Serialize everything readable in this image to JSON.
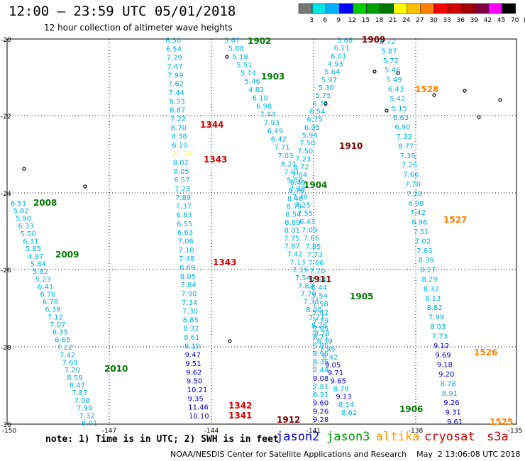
{
  "title": "12:00 – 23:59 UTC 05/01/2018",
  "subtitle": "12 hour collection of altimeter wave heights",
  "colorbar": {
    "labels": [
      "3",
      "6",
      "9",
      "12",
      "15",
      "18",
      "21",
      "24",
      "27",
      "30",
      "33",
      "36",
      "39",
      "42",
      "45",
      "70",
      "(ft)"
    ],
    "colors": [
      "#777777",
      "#00e5e5",
      "#00b0ff",
      "#0000ff",
      "#00cc00",
      "#00a000",
      "#007800",
      "#ffff00",
      "#ffbf00",
      "#ff8000",
      "#ff0000",
      "#d00000",
      "#a00000",
      "#800040",
      "#ff00ff",
      "#000000"
    ]
  },
  "axes": {
    "lat_labels": [
      "-20",
      "-22",
      "-24",
      "-26",
      "-28",
      "-30"
    ],
    "lon_labels": [
      "-150",
      "-147",
      "-144",
      "-141",
      "-138",
      "-135"
    ]
  },
  "tracks": [
    {
      "id": "jason2-A",
      "values": [
        "6.30",
        "6.54",
        "7.29",
        "7.47",
        "7.99",
        "7.62",
        "7.44",
        "8.33",
        "8.87",
        "7.22",
        "8.70",
        "8.38",
        "6.10",
        "21.74",
        "8.02",
        "8.05",
        "6.57",
        "7.23",
        "7.89",
        "7.37",
        "6.83",
        "6.55",
        "6.63",
        "7.06",
        "7.10",
        "7.48",
        "8.69",
        "8.05",
        "7.84",
        "7.90",
        "7.34",
        "7.30",
        "8.85",
        "8.32",
        "8.61",
        "8.10",
        "9.47",
        "9.51",
        "9.62",
        "9.50",
        "10.21",
        "9.35",
        "11.46",
        "10.10"
      ]
    },
    {
      "id": "jason3-B",
      "values": [
        "5.67",
        "5.88",
        "5.18",
        "5.51",
        "5.74",
        "5.46",
        "4.82",
        "6.10",
        "6.98",
        "7.44",
        "7.93",
        "6.49",
        "6.42",
        "7.71",
        "7.03",
        "8.21",
        "7.01",
        "5.58",
        "7.35",
        "7.40",
        "7.25",
        "7.55",
        "6.43",
        "7.09",
        "7.66",
        "7.85",
        "7.73",
        "7.66",
        "7.70",
        "7.64",
        "6.44",
        "7.54",
        "7.58",
        "7.42",
        "7.79",
        "7.95",
        "8.71",
        "6.95",
        "8.96",
        "8.36",
        "7.44",
        "9.08",
        "7.81",
        "8.31",
        "9.60",
        "9.26",
        "9.28"
      ]
    },
    {
      "id": "jason3-C",
      "values": [
        "5.68",
        "6.11",
        "6.01",
        "4.93",
        "5.64",
        "5.97",
        "5.30",
        "5.75",
        "6.75",
        "6.54",
        "6.75",
        "6.05",
        "5.94",
        "7.50",
        "7.50",
        "7.23",
        "6.72",
        "7.04",
        "8.49",
        "8.76",
        "8.46",
        "8.79",
        "8.54",
        "8.89",
        "8.01",
        "7.75",
        "7.87",
        "7.42",
        "7.13",
        "7.19",
        "7.54",
        "7.82",
        "7.70",
        "7.33",
        "8.00",
        "7.77",
        "8.26",
        "8.78",
        "8.39",
        "7.95",
        "8.42",
        "9.05",
        "9.71",
        "9.65",
        "8.79",
        "9.13",
        "8.14",
        "8.62"
      ]
    },
    {
      "id": "jason3-D",
      "values": [
        "5.72",
        "5.87",
        "5.72",
        "5.46",
        "5.49",
        "6.43",
        "5.42",
        "5.15",
        "6.63",
        "6.90",
        "7.32",
        "8.77",
        "7.35",
        "7.26",
        "7.66",
        "7.70",
        "7.28",
        "6.98",
        "7.42",
        "6.96",
        "7.51",
        "7.02",
        "7.83",
        "8.39",
        "8.17",
        "8.29",
        "8.32",
        "8.13",
        "8.82",
        "7.99",
        "8.03",
        "7.73",
        "9.12",
        "9.69",
        "9.18",
        "9.20",
        "8.78",
        "8.91",
        "9.26",
        "9.31",
        "9.61"
      ]
    },
    {
      "id": "jason3-E",
      "values": [
        "6.51",
        "5.82",
        "5.90",
        "6.33",
        "5.50",
        "6.31",
        "5.85",
        "4.97",
        "5.84",
        "5.82",
        "5.23",
        "6.41",
        "6.76",
        "6.78",
        "6.39",
        "7.12",
        "7.07",
        "6.35",
        "6.65",
        "7.22",
        "7.42",
        "7.69",
        "7.20",
        "8.59",
        "8.47",
        "7.87",
        "7.08",
        "7.99",
        "7.32",
        "8.01"
      ]
    }
  ],
  "pass_labels": [
    {
      "text": "1902",
      "color": "#007800"
    },
    {
      "text": "1903",
      "color": "#007800"
    },
    {
      "text": "1909",
      "color": "#800000"
    },
    {
      "text": "1528",
      "color": "#ff8000"
    },
    {
      "text": "1344",
      "color": "#d00000"
    },
    {
      "text": "1343",
      "color": "#d00000"
    },
    {
      "text": "1910",
      "color": "#800000"
    },
    {
      "text": "1904",
      "color": "#007800"
    },
    {
      "text": "2008",
      "color": "#007800"
    },
    {
      "text": "1527",
      "color": "#ff8000"
    },
    {
      "text": "2009",
      "color": "#007800"
    },
    {
      "text": "1343",
      "color": "#d00000"
    },
    {
      "text": "1911",
      "color": "#800000"
    },
    {
      "text": "1905",
      "color": "#007800"
    },
    {
      "text": "1526",
      "color": "#ff8000"
    },
    {
      "text": "2010",
      "color": "#007800"
    },
    {
      "text": "1342",
      "color": "#d00000"
    },
    {
      "text": "1341",
      "color": "#d00000"
    },
    {
      "text": "1912",
      "color": "#800000"
    },
    {
      "text": "1906",
      "color": "#007800"
    },
    {
      "text": "1525",
      "color": "#ff8000"
    }
  ],
  "footer": {
    "note": "note: 1) Time is in UTC; 2) SWH is in feet",
    "satellites": [
      {
        "name": "jason2",
        "color": "#0000cc"
      },
      {
        "name": "jason3",
        "color": "#009900"
      },
      {
        "name": "altika",
        "color": "#ff9900"
      },
      {
        "name": "cryosat",
        "color": "#cc0000"
      },
      {
        "name": "s3a",
        "color": "#cc0000"
      }
    ],
    "credit": "NOAA/NESDIS Center for Satellite Applications and Research    May  2 13:06:08 UTC 2018"
  }
}
